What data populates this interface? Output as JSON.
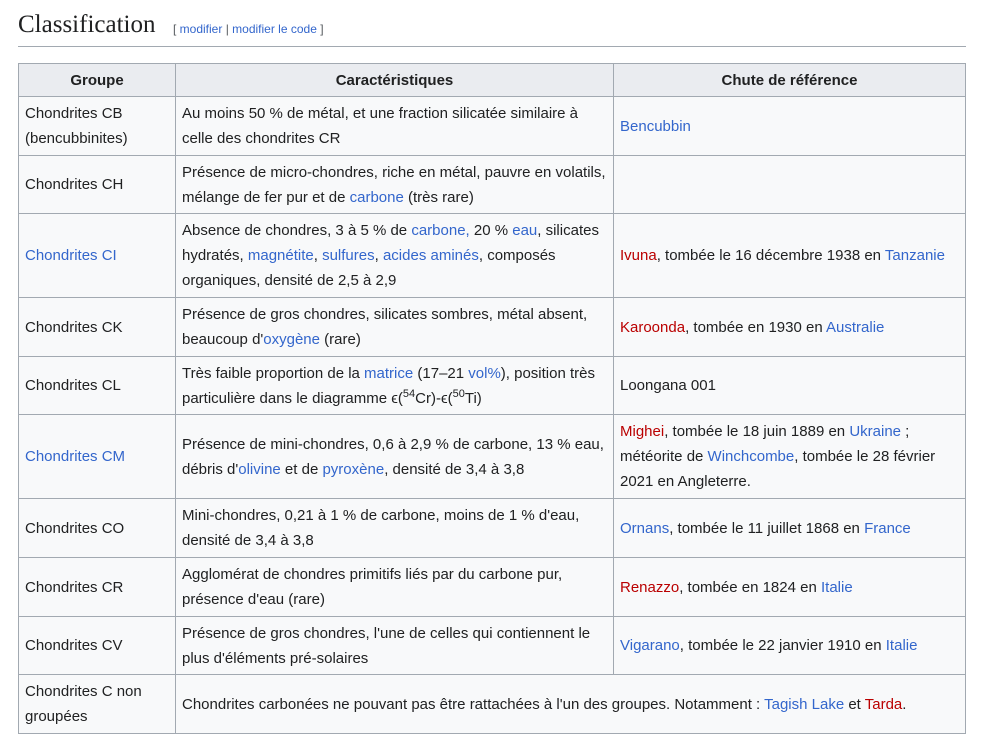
{
  "heading": {
    "title": "Classification",
    "open": "[ ",
    "edit": "modifier",
    "sep": " | ",
    "edit_code": "modifier le code",
    "close": " ]"
  },
  "table": {
    "headers": [
      "Groupe",
      "Caractéristiques",
      "Chute de référence"
    ],
    "rows": [
      {
        "h": 59,
        "group": [
          {
            "t": "Chondrites CB (bencubbinites)"
          }
        ],
        "desc": [
          {
            "t": "Au moins 50 % de métal, et une fraction silicatée similaire à celle des chondrites CR"
          }
        ],
        "ref": [
          {
            "t": "Bencubbin",
            "l": 1
          }
        ]
      },
      {
        "h": 58,
        "group": [
          {
            "t": "Chondrites CH"
          }
        ],
        "desc": [
          {
            "t": "Présence de micro-chondres, riche en métal, pauvre en volatils, mélange de fer pur et de "
          },
          {
            "t": "carbone",
            "l": 1
          },
          {
            "t": " (très rare)"
          }
        ],
        "ref": []
      },
      {
        "h": 84,
        "group": [
          {
            "t": "Chondrites CI",
            "l": 1
          }
        ],
        "desc": [
          {
            "t": "Absence de chondres, 3 à 5 % de "
          },
          {
            "t": "carbone,",
            "l": 1
          },
          {
            "t": " 20 % "
          },
          {
            "t": "eau",
            "l": 1
          },
          {
            "t": ", silicates hydratés, "
          },
          {
            "t": "magnétite",
            "l": 1
          },
          {
            "t": ", "
          },
          {
            "t": "sulfures",
            "l": 1
          },
          {
            "t": ", "
          },
          {
            "t": "acides aminés",
            "l": 1
          },
          {
            "t": ", composés organiques, densité de 2,5 à 2,9"
          }
        ],
        "ref": [
          {
            "t": "Ivuna",
            "r": 1
          },
          {
            "t": ", tombée le 16 décembre 1938 en "
          },
          {
            "t": "Tanzanie",
            "l": 1
          }
        ]
      },
      {
        "h": 59,
        "group": [
          {
            "t": "Chondrites CK"
          }
        ],
        "desc": [
          {
            "t": "Présence de gros chondres, silicates sombres, métal absent, beaucoup d'"
          },
          {
            "t": "oxygène",
            "l": 1
          },
          {
            "t": " (rare)"
          }
        ],
        "ref": [
          {
            "t": "Karoonda",
            "r": 1
          },
          {
            "t": ", tombée en 1930 en "
          },
          {
            "t": "Australie",
            "l": 1
          }
        ]
      },
      {
        "h": 58,
        "group": [
          {
            "t": "Chondrites CL"
          }
        ],
        "desc": [
          {
            "t": "Très faible proportion de la "
          },
          {
            "t": "matrice",
            "l": 1
          },
          {
            "t": " (17–21 "
          },
          {
            "t": "vol%",
            "l": 1
          },
          {
            "t": "), position très particulière dans le diagramme ϵ("
          },
          {
            "t": "54",
            "s": 1
          },
          {
            "t": "Cr)-ϵ("
          },
          {
            "t": "50",
            "s": 1
          },
          {
            "t": "Ti)"
          }
        ],
        "ref": [
          {
            "t": "Loongana 001"
          }
        ]
      },
      {
        "h": 84,
        "group": [
          {
            "t": "Chondrites CM",
            "l": 1
          }
        ],
        "desc": [
          {
            "t": "Présence de mini-chondres, 0,6 à 2,9 % de carbone, 13 % eau, débris d'"
          },
          {
            "t": "olivine",
            "l": 1
          },
          {
            "t": " et de "
          },
          {
            "t": "pyroxène",
            "l": 1
          },
          {
            "t": ", densité de 3,4 à 3,8"
          }
        ],
        "ref": [
          {
            "t": "Mighei",
            "r": 1
          },
          {
            "t": ", tombée le 18 juin 1889 en "
          },
          {
            "t": "Ukraine",
            "l": 1
          },
          {
            "t": " ; météorite de "
          },
          {
            "t": "Winchcombe",
            "l": 1
          },
          {
            "t": ", tombée le 28 février 2021 en Angleterre."
          }
        ]
      },
      {
        "h": 59,
        "group": [
          {
            "t": "Chondrites CO"
          }
        ],
        "desc": [
          {
            "t": "Mini-chondres, 0,21 à 1 % de carbone, moins de 1 % d'eau, densité de 3,4 à 3,8"
          }
        ],
        "ref": [
          {
            "t": "Ornans",
            "l": 1
          },
          {
            "t": ", tombée le 11 juillet 1868 en "
          },
          {
            "t": "France",
            "l": 1
          }
        ]
      },
      {
        "h": 59,
        "group": [
          {
            "t": "Chondrites CR"
          }
        ],
        "desc": [
          {
            "t": "Agglomérat de chondres primitifs liés par du carbone pur, présence d'eau (rare)"
          }
        ],
        "ref": [
          {
            "t": "Renazzo",
            "r": 1
          },
          {
            "t": ", tombée en 1824 en "
          },
          {
            "t": "Italie",
            "l": 1
          }
        ]
      },
      {
        "h": 58,
        "group": [
          {
            "t": "Chondrites CV"
          }
        ],
        "desc": [
          {
            "t": "Présence de gros chondres, l'une de celles qui contiennent le plus d'éléments pré-solaires"
          }
        ],
        "ref": [
          {
            "t": "Vigarano",
            "l": 1
          },
          {
            "t": ", tombée le 22 janvier 1910 en "
          },
          {
            "t": "Italie",
            "l": 1
          }
        ]
      },
      {
        "h": 59,
        "group": [
          {
            "t": "Chondrites C non groupées"
          }
        ],
        "merged": [
          {
            "t": "Chondrites carbonées ne pouvant pas être rattachées à l'un des groupes. Notamment : "
          },
          {
            "t": "Tagish Lake",
            "l": 1
          },
          {
            "t": " et "
          },
          {
            "t": "Tarda",
            "r": 1
          },
          {
            "t": "."
          }
        ]
      }
    ]
  }
}
